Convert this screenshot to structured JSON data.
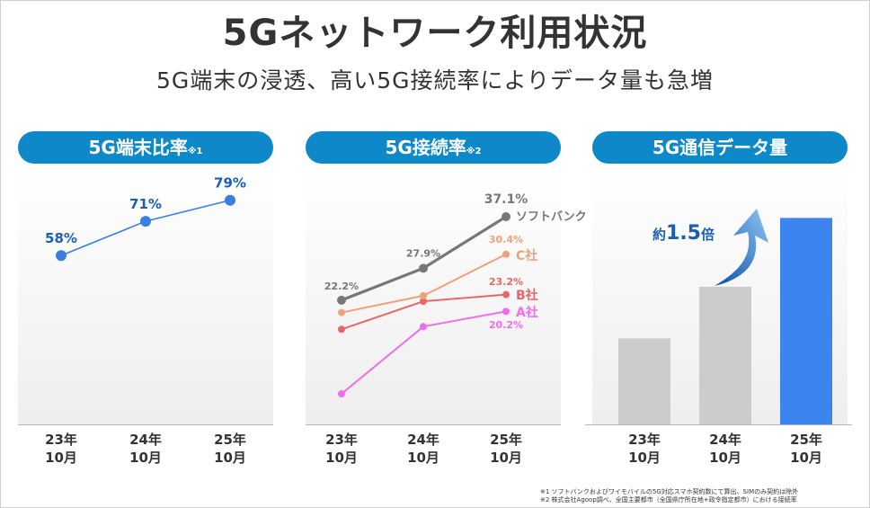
{
  "title": "5Gネットワーク利用状況",
  "subtitle": "5G端末の浸透、高い5G接続率によりデータ量も急増",
  "panels": {
    "p1": {
      "label": "5G端末比率",
      "note": "※1"
    },
    "p2": {
      "label": "5G接続率",
      "note": "※2"
    },
    "p3": {
      "label": "5G通信データ量",
      "note": ""
    }
  },
  "x_labels": [
    {
      "year": "23年",
      "month": "10月"
    },
    {
      "year": "24年",
      "month": "10月"
    },
    {
      "year": "25年",
      "month": "10月"
    }
  ],
  "multiplier": {
    "prefix": "約",
    "value": "1.5",
    "suffix": "倍"
  },
  "footnotes": [
    "※1 ソフトバンクおよびワイモバイルの5G対応スマホ契約数にて算出、SIMのみ契約は除外",
    "※2 株式会社Agoop調べ、全国主要都市（全国県庁所在地+政令指定都市）における接続率"
  ],
  "colors": {
    "pill": "#0e88c8",
    "terminal_line": "#3a7fe0",
    "terminal_label": "#1a5fb4",
    "softbank": "#777777",
    "c_company": "#eea27a",
    "b_company": "#e86868",
    "a_company": "#ef6ee9",
    "bar_gray": "#cccccc",
    "bar_blue": "#3d85ee"
  },
  "chart_data": [
    {
      "type": "line",
      "title": "5G端末比率",
      "categories": [
        "23年10月",
        "24年10月",
        "25年10月"
      ],
      "values": [
        58,
        71,
        79
      ],
      "data_labels": [
        "58%",
        "71%",
        "79%"
      ],
      "ylim": [
        0,
        100
      ]
    },
    {
      "type": "line",
      "title": "5G接続率",
      "categories": [
        "23年10月",
        "24年10月",
        "25年10月"
      ],
      "ylim": [
        0,
        40
      ],
      "series": [
        {
          "name": "ソフトバンク",
          "values": [
            22.2,
            27.9,
            37.1
          ],
          "labels": [
            "22.2%",
            "27.9%",
            "37.1%"
          ]
        },
        {
          "name": "C社",
          "values": [
            20.0,
            23.0,
            30.4
          ],
          "labels": [
            "",
            "",
            "30.4%"
          ]
        },
        {
          "name": "B社",
          "values": [
            17.0,
            22.0,
            23.2
          ],
          "labels": [
            "",
            "",
            "23.2%"
          ]
        },
        {
          "name": "A社",
          "values": [
            5.5,
            17.5,
            20.2
          ],
          "labels": [
            "",
            "",
            "20.2%"
          ]
        }
      ]
    },
    {
      "type": "bar",
      "title": "5G通信データ量",
      "categories": [
        "23年10月",
        "24年10月",
        "25年10月"
      ],
      "values": [
        1.0,
        1.6,
        2.4
      ],
      "ylim": [
        0,
        3.0
      ]
    }
  ]
}
